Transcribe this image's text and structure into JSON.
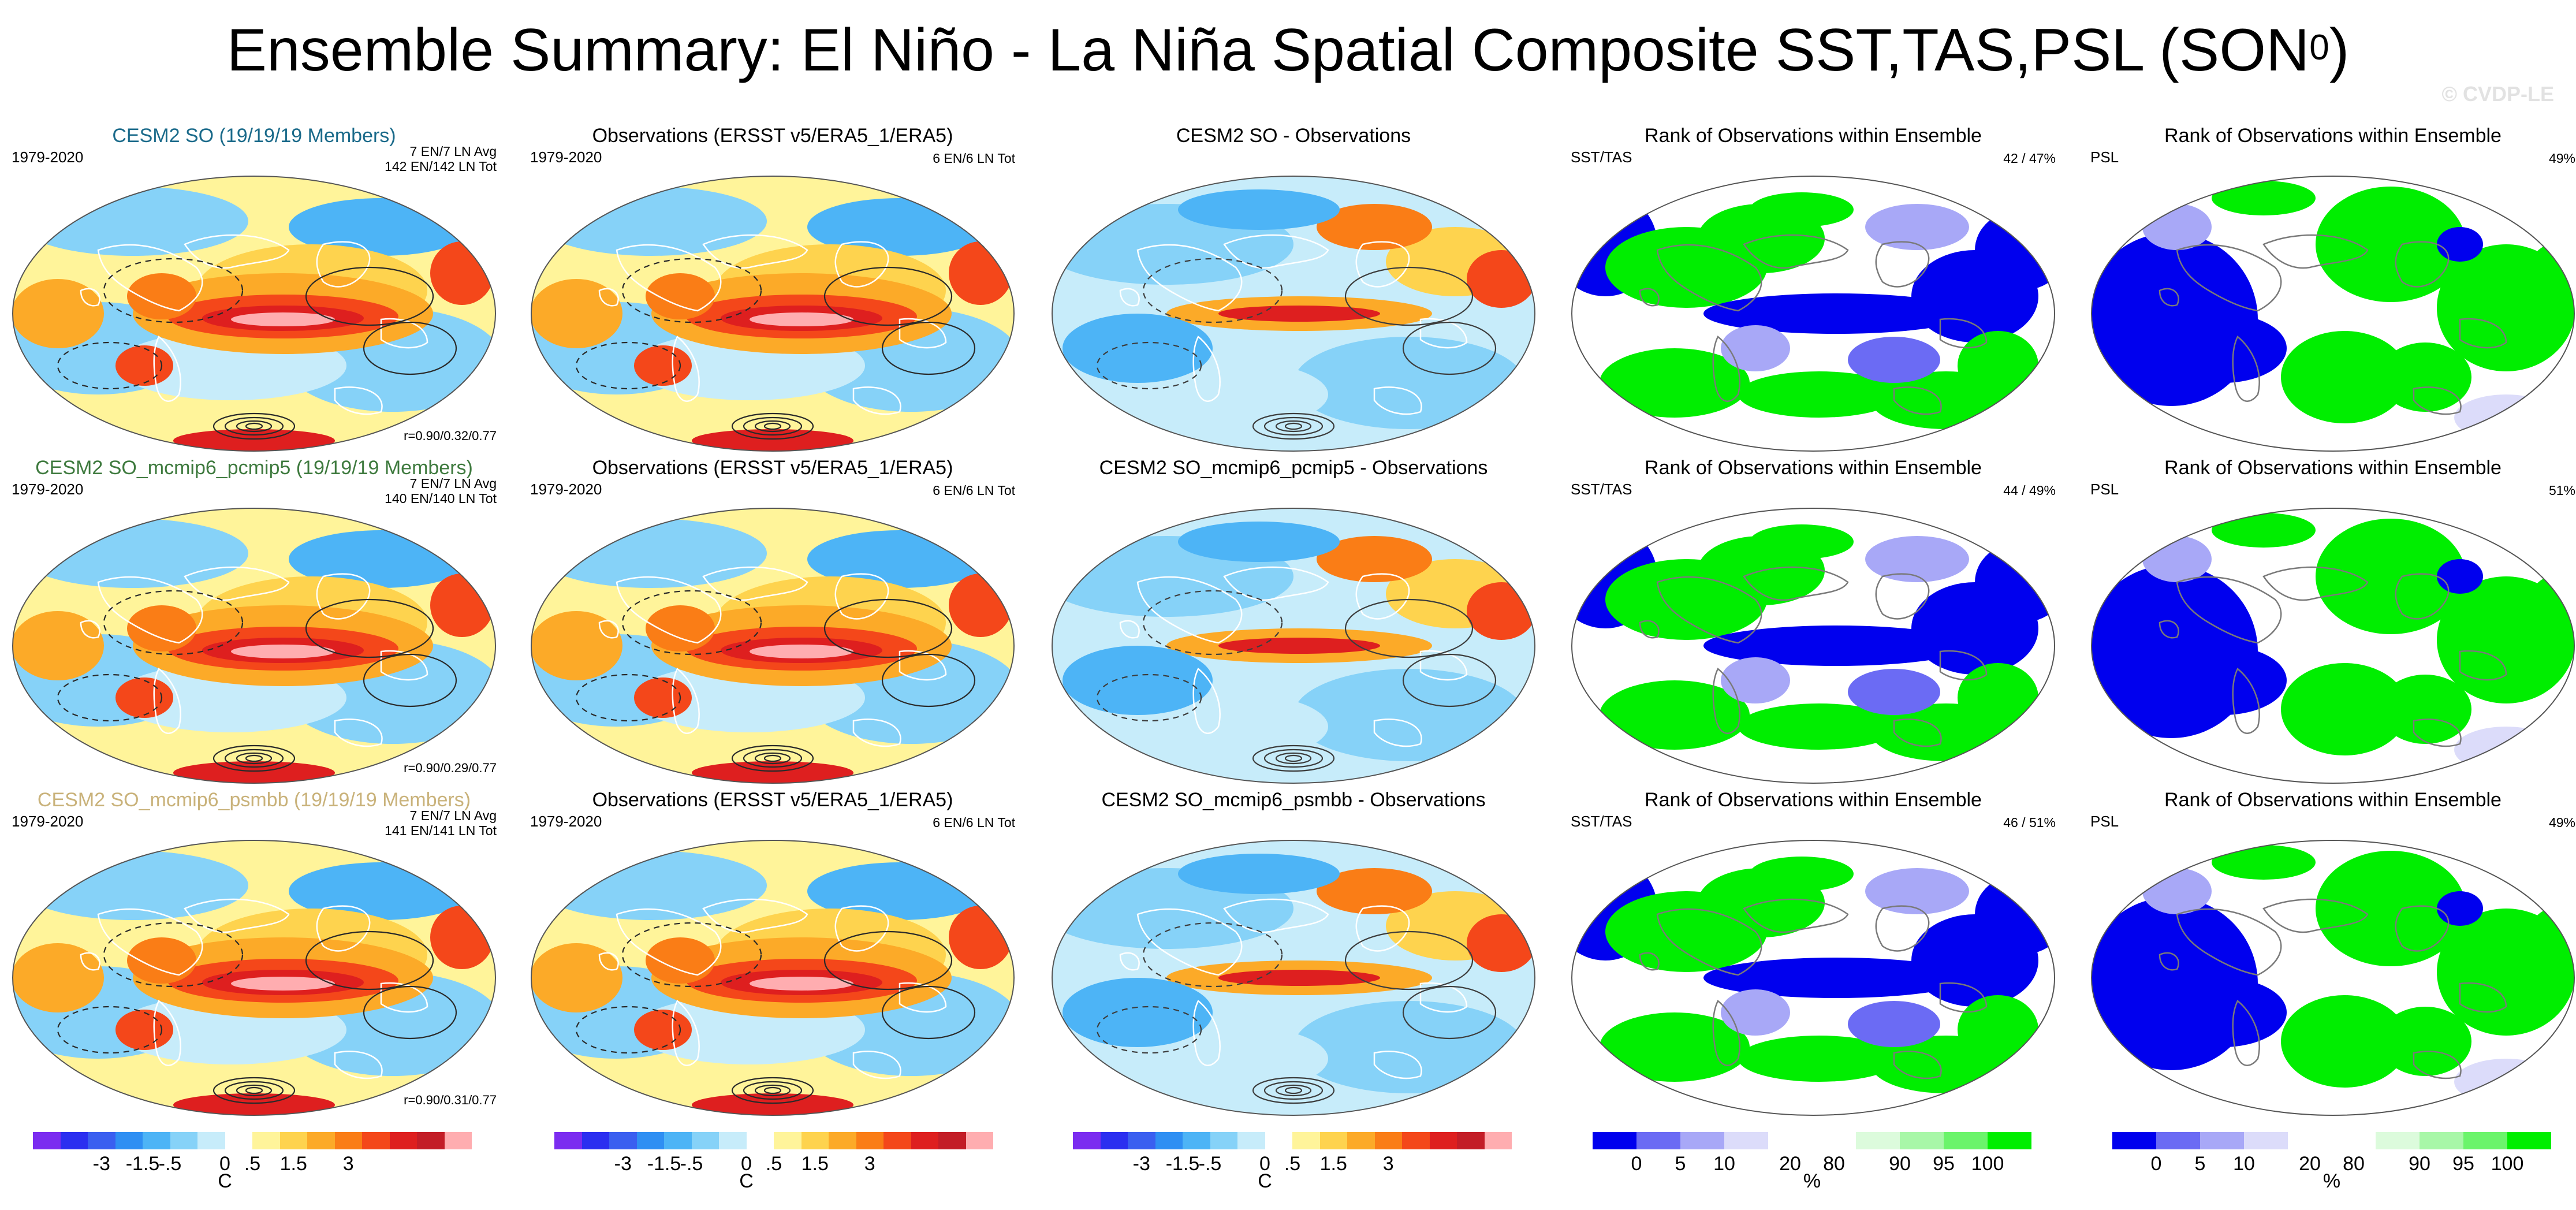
{
  "title_main": "Ensemble Summary: El Niño - La Niña Spatial Composite SST,TAS,PSL (SON",
  "title_sup": "0",
  "title_close": ")",
  "watermark": "© CVDP-LE",
  "colors": {
    "diverging": [
      "#7b2cf0",
      "#2b2ff0",
      "#3a5ff0",
      "#2f8ff3",
      "#4db4f6",
      "#86d2f8",
      "#c7ecfa",
      "#ffffff",
      "#fff49a",
      "#fed34e",
      "#fcaa28",
      "#fa7d16",
      "#f4471a",
      "#de1f1f",
      "#c31d27",
      "#ffadb0"
    ],
    "rank": [
      "#0000ee",
      "#6b6bf4",
      "#a8a8f7",
      "#dcdcfa",
      "#ffffff",
      "#ffffff",
      "#dcfbdc",
      "#a8f7a8",
      "#6bf46b",
      "#00ee00"
    ],
    "model_title_row1": "#1a6a8a",
    "model_title_row2": "#3e7a3e",
    "model_title_row3": "#c9b27a"
  },
  "rows": [
    {
      "model": {
        "title": "CESM2 SO (19/19/19 Members)",
        "period": "1979-2020",
        "avg": "7 EN/7 LN Avg",
        "tot": "142 EN/142 LN Tot",
        "corr": "r=0.90/0.32/0.77"
      },
      "obs": {
        "title": "Observations (ERSST v5/ERA5_1/ERA5)",
        "period": "1979-2020",
        "tot": "6 EN/6 LN Tot"
      },
      "diff": {
        "title": "CESM2 SO - Observations"
      },
      "rank_sst": {
        "title": "Rank of Observations within Ensemble",
        "label": "SST/TAS",
        "pct": "42 /  47%"
      },
      "rank_psl": {
        "title": "Rank of Observations within Ensemble",
        "label": "PSL",
        "pct": "49%"
      }
    },
    {
      "model": {
        "title": "CESM2 SO_mcmip6_pcmip5 (19/19/19 Members)",
        "period": "1979-2020",
        "avg": "7 EN/7 LN Avg",
        "tot": "140 EN/140 LN Tot",
        "corr": "r=0.90/0.29/0.77"
      },
      "obs": {
        "title": "Observations (ERSST v5/ERA5_1/ERA5)",
        "period": "1979-2020",
        "tot": "6 EN/6 LN Tot"
      },
      "diff": {
        "title": "CESM2 SO_mcmip6_pcmip5 - Observations"
      },
      "rank_sst": {
        "title": "Rank of Observations within Ensemble",
        "label": "SST/TAS",
        "pct": "44 /  49%"
      },
      "rank_psl": {
        "title": "Rank of Observations within Ensemble",
        "label": "PSL",
        "pct": "51%"
      }
    },
    {
      "model": {
        "title": "CESM2 SO_mcmip6_psmbb (19/19/19 Members)",
        "period": "1979-2020",
        "avg": "7 EN/7 LN Avg",
        "tot": "141 EN/141 LN Tot",
        "corr": "r=0.90/0.31/0.77"
      },
      "obs": {
        "title": "Observations (ERSST v5/ERA5_1/ERA5)",
        "period": "1979-2020",
        "tot": "6 EN/6 LN Tot"
      },
      "diff": {
        "title": "CESM2 SO_mcmip6_psmbb - Observations"
      },
      "rank_sst": {
        "title": "Rank of Observations within Ensemble",
        "label": "SST/TAS",
        "pct": "46 /  51%"
      },
      "rank_psl": {
        "title": "Rank of Observations within Ensemble",
        "label": "PSL",
        "pct": "49%"
      }
    }
  ],
  "colorbars": {
    "diverging": {
      "ticks": [
        "-3",
        "-1.5",
        "-.5",
        "0",
        ".5",
        "1.5",
        "3"
      ],
      "unit": "C"
    },
    "rank": {
      "ticks": [
        "0",
        "5",
        "10",
        "20",
        "80",
        "90",
        "95",
        "100"
      ],
      "unit": "%"
    }
  },
  "chart_data": {
    "type": "heatmap",
    "title": "Ensemble Summary: El Niño - La Niña Spatial Composite SST,TAS,PSL (SON0)",
    "projection": "Robinson global maps, 3 rows x 5 columns",
    "columns": [
      "Model composite",
      "Observations composite",
      "Model - Observations",
      "Rank SST/TAS",
      "Rank PSL"
    ],
    "diverging_scale": {
      "levels": [
        -3,
        -2.5,
        -2,
        -1.5,
        -1,
        -0.5,
        -0.25,
        0,
        0.25,
        0.5,
        1,
        1.5,
        2,
        2.5,
        3
      ],
      "unit": "C"
    },
    "rank_scale": {
      "levels": [
        0,
        5,
        10,
        20,
        80,
        90,
        95,
        100
      ],
      "unit": "%"
    },
    "rank_summary": [
      {
        "row": 1,
        "sst_tas": [
          42,
          47
        ],
        "psl": 49
      },
      {
        "row": 2,
        "sst_tas": [
          44,
          49
        ],
        "psl": 51
      },
      {
        "row": 3,
        "sst_tas": [
          46,
          51
        ],
        "psl": 49
      }
    ],
    "pattern_correlations": [
      {
        "row": 1,
        "r": [
          0.9,
          0.32,
          0.77
        ]
      },
      {
        "row": 2,
        "r": [
          0.9,
          0.29,
          0.77
        ]
      },
      {
        "row": 3,
        "r": [
          0.9,
          0.31,
          0.77
        ]
      }
    ]
  }
}
